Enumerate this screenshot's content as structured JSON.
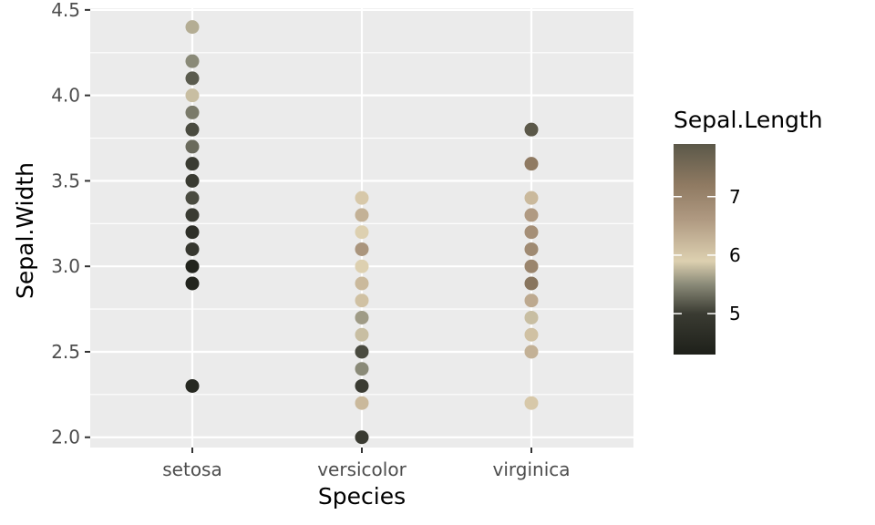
{
  "chart_data": {
    "type": "scatter",
    "xlabel": "Species",
    "ylabel": "Sepal.Width",
    "categories": [
      "setosa",
      "versicolor",
      "virginica"
    ],
    "y_ticks": [
      "2.0",
      "2.5",
      "3.0",
      "3.5",
      "4.0",
      "4.5"
    ],
    "ylim": [
      1.94,
      4.51
    ],
    "grid": true,
    "panel_background": "#ebebeb",
    "color_scale": {
      "title": "Sepal.Length",
      "domain": [
        4.3,
        7.9
      ],
      "ticks": [
        "5",
        "6",
        "7"
      ],
      "stops": [
        {
          "value": 4.3,
          "color": "#1e201a"
        },
        {
          "value": 5.0,
          "color": "#3a3b32"
        },
        {
          "value": 5.5,
          "color": "#8a8a78"
        },
        {
          "value": 5.9,
          "color": "#ddd0b0"
        },
        {
          "value": 6.6,
          "color": "#b09a82"
        },
        {
          "value": 7.2,
          "color": "#8f7a62"
        },
        {
          "value": 7.9,
          "color": "#5b5849"
        }
      ]
    },
    "points": [
      {
        "species": "setosa",
        "y": 4.4,
        "color": 5.7
      },
      {
        "species": "setosa",
        "y": 4.2,
        "color": 5.5
      },
      {
        "species": "setosa",
        "y": 4.1,
        "color": 5.2
      },
      {
        "species": "setosa",
        "y": 4.0,
        "color": 5.8
      },
      {
        "species": "setosa",
        "y": 3.9,
        "color": 5.4
      },
      {
        "species": "setosa",
        "y": 3.8,
        "color": 5.1
      },
      {
        "species": "setosa",
        "y": 3.7,
        "color": 5.3
      },
      {
        "species": "setosa",
        "y": 3.6,
        "color": 5.0
      },
      {
        "species": "setosa",
        "y": 3.5,
        "color": 5.0
      },
      {
        "species": "setosa",
        "y": 3.4,
        "color": 5.1
      },
      {
        "species": "setosa",
        "y": 3.3,
        "color": 5.0
      },
      {
        "species": "setosa",
        "y": 3.2,
        "color": 4.7
      },
      {
        "species": "setosa",
        "y": 3.1,
        "color": 4.9
      },
      {
        "species": "setosa",
        "y": 3.0,
        "color": 4.4
      },
      {
        "species": "setosa",
        "y": 2.9,
        "color": 4.4
      },
      {
        "species": "setosa",
        "y": 2.3,
        "color": 4.5
      },
      {
        "species": "versicolor",
        "y": 3.4,
        "color": 6.0
      },
      {
        "species": "versicolor",
        "y": 3.3,
        "color": 6.3
      },
      {
        "species": "versicolor",
        "y": 3.2,
        "color": 5.9
      },
      {
        "species": "versicolor",
        "y": 3.1,
        "color": 6.7
      },
      {
        "species": "versicolor",
        "y": 3.0,
        "color": 5.9
      },
      {
        "species": "versicolor",
        "y": 2.9,
        "color": 6.2
      },
      {
        "species": "versicolor",
        "y": 2.8,
        "color": 6.1
      },
      {
        "species": "versicolor",
        "y": 2.7,
        "color": 5.6
      },
      {
        "species": "versicolor",
        "y": 2.6,
        "color": 5.8
      },
      {
        "species": "versicolor",
        "y": 2.5,
        "color": 5.1
      },
      {
        "species": "versicolor",
        "y": 2.4,
        "color": 5.5
      },
      {
        "species": "versicolor",
        "y": 2.3,
        "color": 5.0
      },
      {
        "species": "versicolor",
        "y": 2.2,
        "color": 6.2
      },
      {
        "species": "versicolor",
        "y": 2.0,
        "color": 5.0
      },
      {
        "species": "virginica",
        "y": 3.8,
        "color": 7.9
      },
      {
        "species": "virginica",
        "y": 3.6,
        "color": 7.2
      },
      {
        "species": "virginica",
        "y": 3.4,
        "color": 6.2
      },
      {
        "species": "virginica",
        "y": 3.3,
        "color": 6.6
      },
      {
        "species": "virginica",
        "y": 3.2,
        "color": 6.8
      },
      {
        "species": "virginica",
        "y": 3.1,
        "color": 6.9
      },
      {
        "species": "virginica",
        "y": 3.0,
        "color": 7.0
      },
      {
        "species": "virginica",
        "y": 2.9,
        "color": 7.3
      },
      {
        "species": "virginica",
        "y": 2.8,
        "color": 6.4
      },
      {
        "species": "virginica",
        "y": 2.7,
        "color": 5.8
      },
      {
        "species": "virginica",
        "y": 2.6,
        "color": 6.1
      },
      {
        "species": "virginica",
        "y": 2.5,
        "color": 6.3
      },
      {
        "species": "virginica",
        "y": 2.2,
        "color": 6.0
      }
    ]
  }
}
